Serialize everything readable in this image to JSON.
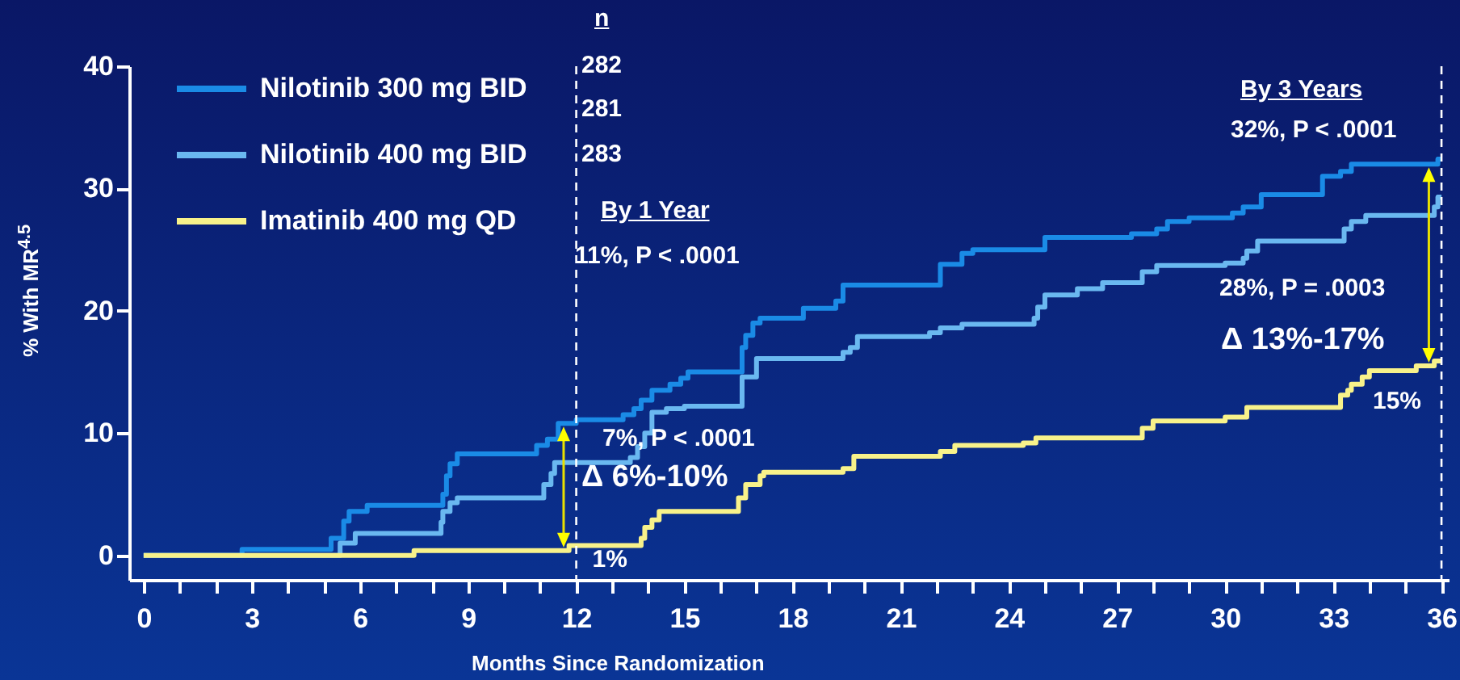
{
  "chart_data": {
    "type": "step",
    "xlabel": "Months Since Randomization",
    "ylabel": "% With MR$^{4.5}$",
    "series": [
      {
        "name": "Nilotinib 300 mg BID",
        "color": "#1a8be6",
        "x": [
          0,
          2.73,
          5.2,
          5.55,
          5.7,
          6.2,
          8.3,
          8.4,
          8.5,
          8.7,
          10.9,
          11.2,
          11.5,
          12.0,
          13.3,
          13.6,
          13.8,
          14.1,
          14.6,
          14.9,
          15.1,
          16.6,
          16.7,
          16.9,
          17.1,
          18.3,
          19.2,
          19.4,
          22.1,
          22.7,
          23.0,
          25.0,
          27.4,
          28.1,
          28.4,
          29.0,
          30.2,
          30.5,
          31.0,
          32.7,
          33.2,
          33.5,
          35.9,
          36
        ],
        "values": [
          0,
          0.5,
          1.4,
          2.8,
          3.6,
          4.1,
          5.0,
          6.5,
          7.5,
          8.3,
          9.0,
          9.5,
          10.8,
          11.1,
          11.5,
          12.0,
          12.7,
          13.5,
          14.0,
          14.5,
          15.0,
          17.0,
          18.0,
          19.0,
          19.4,
          20.2,
          20.8,
          22.1,
          23.8,
          24.7,
          25.0,
          26.0,
          26.3,
          26.7,
          27.3,
          27.6,
          28.0,
          28.5,
          29.5,
          31.0,
          31.4,
          32.0,
          32.4,
          32.4
        ]
      },
      {
        "name": "Nilotinib 400 mg BID",
        "color": "#6ab8f0",
        "x": [
          0,
          5.45,
          5.87,
          8.25,
          8.3,
          8.5,
          8.7,
          11.1,
          11.3,
          11.4,
          13.5,
          13.7,
          13.9,
          14.1,
          14.5,
          15.0,
          16.6,
          17.0,
          19.4,
          19.6,
          19.8,
          21.8,
          22.1,
          22.7,
          24.7,
          24.8,
          25.0,
          25.9,
          26.6,
          27.7,
          28.1,
          30.0,
          30.5,
          30.6,
          30.9,
          33.3,
          33.5,
          33.9,
          35.8,
          35.9,
          36
        ],
        "values": [
          0,
          1.0,
          1.8,
          2.7,
          3.6,
          4.3,
          4.7,
          5.8,
          6.7,
          7.6,
          8.0,
          8.9,
          10.0,
          11.7,
          12.0,
          12.2,
          14.6,
          16.1,
          16.6,
          17.0,
          17.9,
          18.2,
          18.6,
          18.9,
          19.4,
          20.3,
          21.3,
          21.8,
          22.3,
          23.2,
          23.7,
          23.9,
          24.3,
          24.9,
          25.7,
          26.7,
          27.3,
          27.8,
          28.5,
          29.3,
          29.3
        ]
      },
      {
        "name": "Imatinib 400 mg QD",
        "color": "#f8f28a",
        "x": [
          0,
          7.5,
          11.8,
          13.8,
          13.9,
          14.1,
          14.3,
          16.5,
          16.7,
          17.1,
          17.2,
          19.4,
          19.7,
          22.1,
          22.5,
          24.4,
          24.75,
          27.7,
          28.0,
          30.0,
          30.6,
          33.2,
          33.4,
          33.5,
          33.8,
          34.0,
          35.3,
          35.8,
          36
        ],
        "values": [
          0,
          0.4,
          0.8,
          1.4,
          2.3,
          2.9,
          3.6,
          4.7,
          5.8,
          6.5,
          6.8,
          7.1,
          8.1,
          8.5,
          9.0,
          9.2,
          9.6,
          10.4,
          11.0,
          11.3,
          12.1,
          13.1,
          13.5,
          14.0,
          14.6,
          15.1,
          15.5,
          15.9,
          15.9
        ]
      }
    ],
    "xlim": [
      -0.4,
      36.2
    ],
    "xticks": [
      0,
      {
        "value": 1,
        "label": null
      },
      {
        "value": 2,
        "label": null
      },
      3,
      {
        "value": 4,
        "label": null
      },
      {
        "value": 5,
        "label": null
      },
      6,
      {
        "value": 7,
        "label": null
      },
      {
        "value": 8,
        "label": null
      },
      9,
      {
        "value": 10,
        "label": null
      },
      {
        "value": 11,
        "label": null
      },
      12,
      {
        "value": 13,
        "label": null
      },
      {
        "value": 14,
        "label": null
      },
      15,
      {
        "value": 16,
        "label": null
      },
      {
        "value": 17,
        "label": null
      },
      18,
      {
        "value": 19,
        "label": null
      },
      {
        "value": 20,
        "label": null
      },
      21,
      {
        "value": 22,
        "label": null
      },
      {
        "value": 23,
        "label": null
      },
      24,
      {
        "value": 25,
        "label": null
      },
      {
        "value": 26,
        "label": null
      },
      27,
      {
        "value": 28,
        "label": null
      },
      {
        "value": 29,
        "label": null
      },
      30,
      {
        "value": 31,
        "label": null
      },
      {
        "value": 32,
        "label": null
      },
      33,
      {
        "value": 34,
        "label": null
      },
      {
        "value": 35,
        "label": null
      },
      36
    ],
    "ylim": [
      -2,
      40
    ],
    "yticks": [
      0,
      10,
      20,
      30,
      40
    ],
    "grid": false,
    "legend": "top left",
    "ref_lines": [
      {
        "axis": "x",
        "value": 12,
        "color": "#ffffff",
        "line_style": "dashed"
      },
      {
        "axis": "x",
        "value": 36,
        "color": "#ffffff",
        "line_style": "dashed"
      }
    ],
    "annotations": [
      "n",
      "282",
      "281",
      "283",
      "By 1 Year",
      "11%, P < .0001",
      "7%, P < .0001",
      "Δ  6%-10%",
      {
        "text": "1%",
        "x": 12,
        "y": 0.8
      },
      "By 3 Years",
      "32%, P < .0001",
      "28%, P = .0003",
      "Δ  13%-17%",
      "15%"
    ]
  }
}
